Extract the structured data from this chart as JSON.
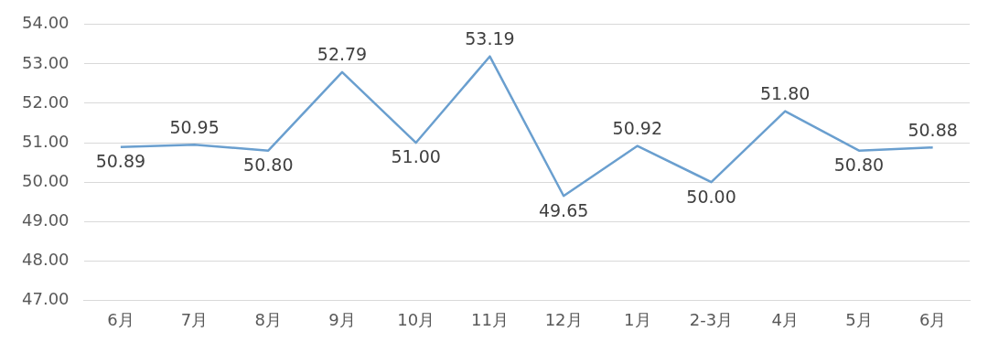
{
  "chart_data": {
    "type": "line",
    "categories": [
      "6月",
      "7月",
      "8月",
      "9月",
      "10月",
      "11月",
      "12月",
      "1月",
      "2-3月",
      "4月",
      "5月",
      "6月"
    ],
    "series": [
      {
        "color": "#6a9fcf",
        "values": [
          50.89,
          50.95,
          50.8,
          52.79,
          51.0,
          53.19,
          49.65,
          50.92,
          50.0,
          51.8,
          50.8,
          50.88
        ],
        "value_labels": [
          "50.89",
          "50.95",
          "50.80",
          "52.79",
          "51.00",
          "53.19",
          "49.65",
          "50.92",
          "50.00",
          "51.80",
          "50.80",
          "50.88"
        ]
      }
    ],
    "ylim": [
      47,
      54
    ],
    "yticks": [
      {
        "value": 47,
        "label": "47.00"
      },
      {
        "value": 48,
        "label": "48.00"
      },
      {
        "value": 49,
        "label": "49.00"
      },
      {
        "value": 50,
        "label": "50.00"
      },
      {
        "value": 51,
        "label": "51.00"
      },
      {
        "value": 52,
        "label": "52.00"
      },
      {
        "value": 53,
        "label": "53.00"
      },
      {
        "value": 54,
        "label": "54.00"
      }
    ],
    "grid": "y",
    "marker": "none",
    "legend": false
  }
}
